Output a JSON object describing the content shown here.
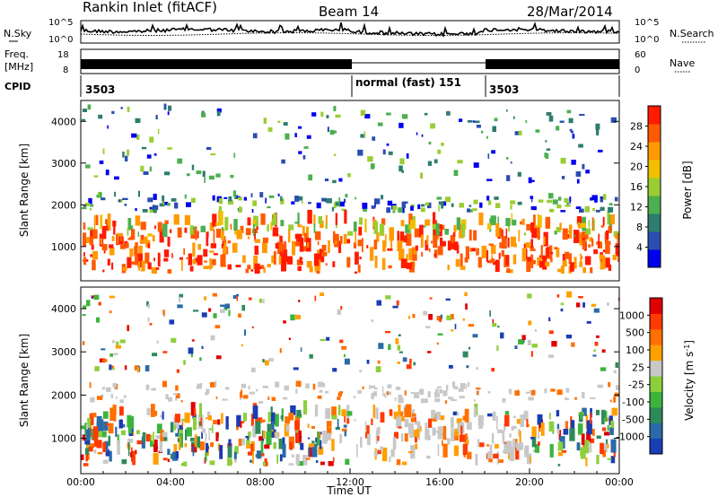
{
  "header": {
    "station": "Rankin Inlet (fitACF)",
    "beam": "Beam 14",
    "date": "28/Mar/2014"
  },
  "noise_panel": {
    "left_label": "N.Sky",
    "right_label": "N.Search",
    "left_ticks": [
      "10^5",
      "10^0"
    ],
    "right_ticks": [
      "10^5",
      "10^0"
    ]
  },
  "freq_panel": {
    "left_label_1": "Freq.",
    "left_label_2": "[MHz]",
    "right_label": "Nave",
    "left_ticks": [
      "18",
      "8"
    ],
    "right_ticks": [
      "60",
      "0"
    ]
  },
  "cpid_panel": {
    "label": "CPID",
    "segments": [
      {
        "text": "3503",
        "start_hour": 0
      },
      {
        "text": "normal (fast) 151",
        "start_hour": 12
      },
      {
        "text": "3503",
        "start_hour": 18
      }
    ]
  },
  "chart_data": [
    {
      "type": "heatmap",
      "name": "power",
      "ylabel": "Slant Range [km]",
      "ylim": [
        180,
        4500
      ],
      "xlim": [
        0,
        24
      ],
      "yticks": [
        1000,
        2000,
        3000,
        4000
      ],
      "colorbar": {
        "label": "Power [dB]",
        "ticks": [
          "28",
          "24",
          "20",
          "16",
          "12",
          "8",
          "4"
        ],
        "colors": [
          "#0000ee",
          "#2a4db0",
          "#2e7d6e",
          "#4caf50",
          "#9acd32",
          "#f0c000",
          "#ff9a00",
          "#ff5a00",
          "#ff1a00"
        ]
      }
    },
    {
      "type": "heatmap",
      "name": "velocity",
      "ylabel": "Slant Range [km]",
      "ylim": [
        180,
        4500
      ],
      "xlim": [
        0,
        24
      ],
      "yticks": [
        1000,
        2000,
        3000,
        4000
      ],
      "xlabel": "Time UT",
      "xticks": [
        "00:00",
        "04:00",
        "08:00",
        "12:00",
        "16:00",
        "20:00",
        "00:00"
      ],
      "colorbar": {
        "label": "Velocity [m s",
        "label_sup": "-1",
        "label_close": "]",
        "ticks": [
          "1000",
          "500",
          "100",
          "25",
          "-25",
          "-100",
          "-500",
          "-1000"
        ],
        "colors": [
          "#1a3cb4",
          "#2a6aa8",
          "#2e8a5a",
          "#3cb43c",
          "#8ccf3c",
          "#c8c8c8",
          "#ffa000",
          "#ff7000",
          "#ff3a00",
          "#e00000"
        ]
      }
    }
  ],
  "colors": {
    "gray_band": "#c8c8c8",
    "white": "#ffffff"
  }
}
